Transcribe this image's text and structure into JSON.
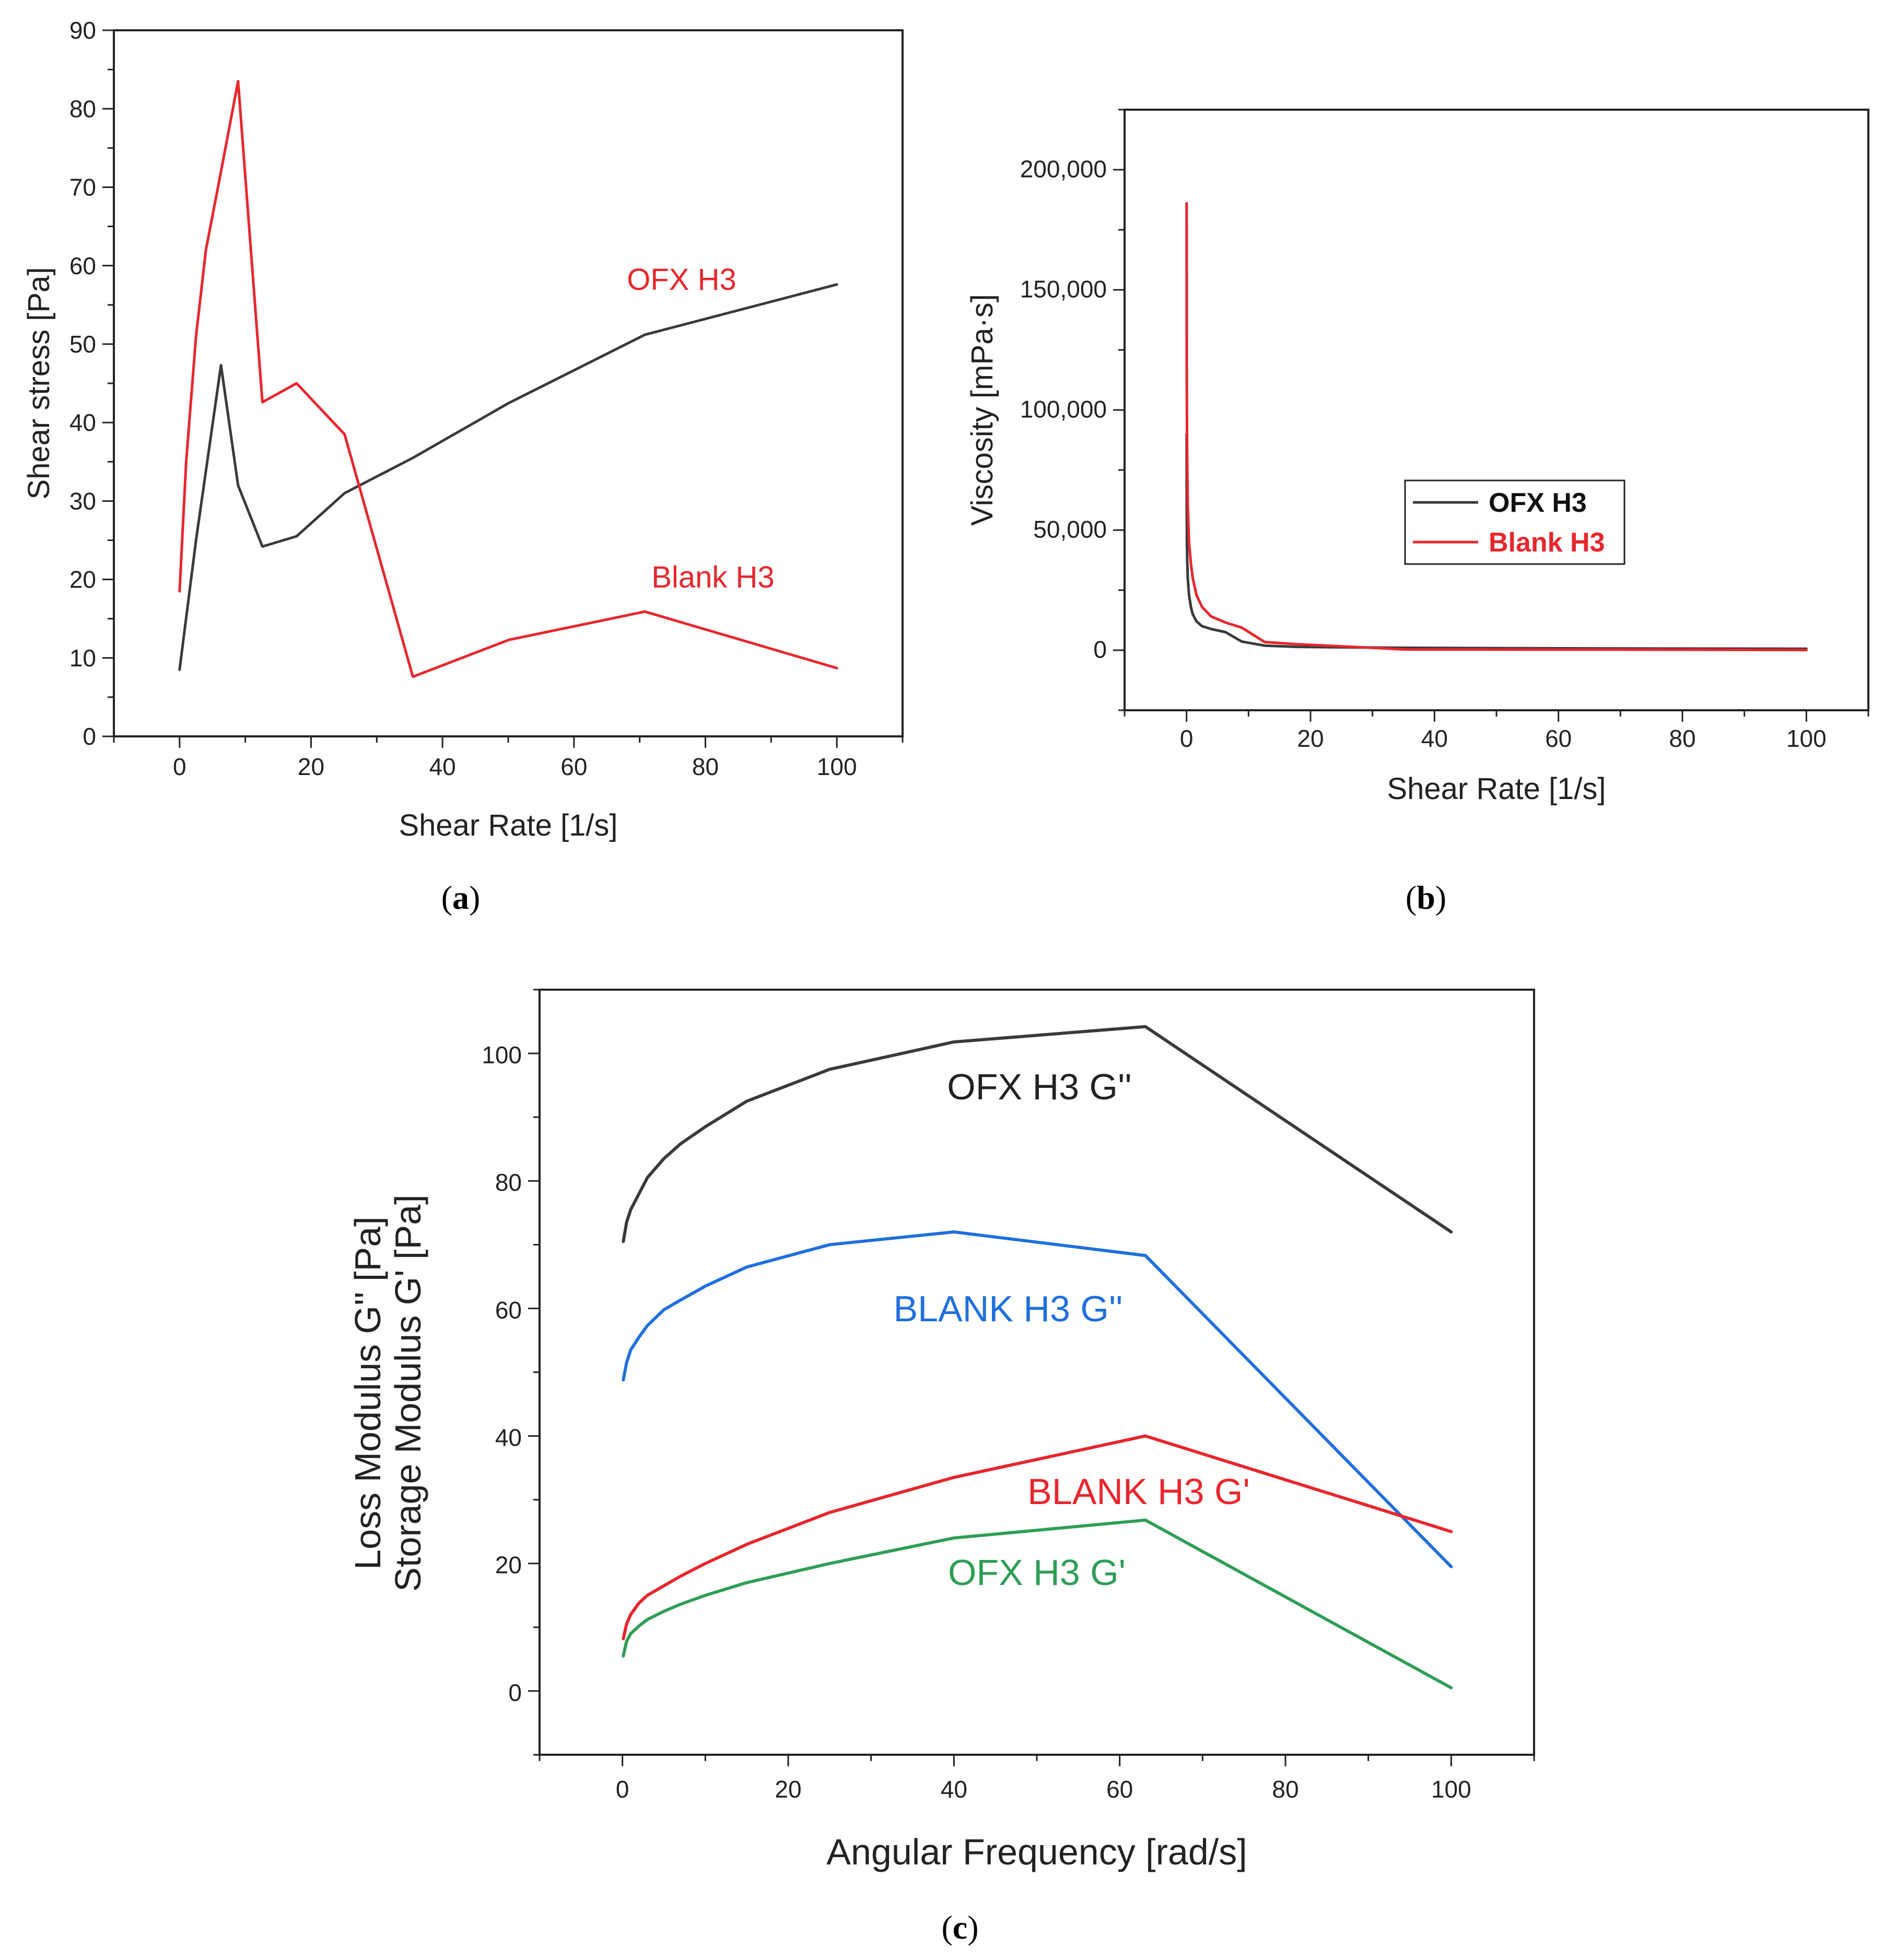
{
  "chart_data": [
    {
      "type": "line",
      "panel_label": "(a)",
      "panel_letter": "a",
      "xlabel": "Shear Rate [1/s]",
      "ylabel": "Shear stress [Pa]",
      "xlim": [
        -10,
        110
      ],
      "ylim": [
        0,
        90
      ],
      "xticks": [
        0,
        20,
        40,
        60,
        80,
        100
      ],
      "yticks": [
        0,
        10,
        20,
        30,
        40,
        50,
        60,
        70,
        80,
        90
      ],
      "series": [
        {
          "name": "OFX H3",
          "color": "#3a3a3a",
          "x": [
            0,
            2.5,
            6.3,
            8.9,
            12.6,
            17.8,
            25.1,
            35.5,
            50.1,
            70.8,
            100
          ],
          "y": [
            8.5,
            25,
            47.3,
            32,
            24.2,
            25.5,
            31,
            35.5,
            42.5,
            51.2,
            57.6
          ]
        },
        {
          "name": "Blank H3",
          "color": "#e8262c",
          "x": [
            0,
            1,
            2.5,
            4,
            6.3,
            8.9,
            12.6,
            17.8,
            25.1,
            35.5,
            50.1,
            70.8,
            100
          ],
          "y": [
            18.5,
            35,
            51,
            62,
            72,
            83.5,
            42.6,
            45,
            38.5,
            7.6,
            12.3,
            15.9,
            8.7
          ]
        }
      ],
      "annotations": [
        {
          "text": "OFX H3",
          "color": "#e8262c"
        },
        {
          "text": "Blank H3",
          "color": "#e8262c"
        }
      ]
    },
    {
      "type": "line",
      "panel_label": "(b)",
      "panel_letter": "b",
      "xlabel": "Shear Rate [1/s]",
      "ylabel": "Viscosity [mPa·s]",
      "xlim": [
        -10,
        110
      ],
      "ylim": [
        -25000,
        225000
      ],
      "xticks": [
        0,
        20,
        40,
        60,
        80,
        100
      ],
      "yticks": [
        0,
        50000,
        100000,
        150000,
        200000
      ],
      "ytick_labels": [
        "0",
        "50,000",
        "100,000",
        "150,000",
        "200,000"
      ],
      "legend": [
        "OFX H3",
        "Blank H3"
      ],
      "legend_position": "center",
      "series": [
        {
          "name": "OFX H3",
          "color": "#3a3a3a",
          "x": [
            0.01,
            0.03,
            0.06,
            0.1,
            0.2,
            0.4,
            0.7,
            1,
            1.6,
            2.5,
            4,
            6.3,
            8.9,
            12.6,
            17.8,
            25.1,
            35.5,
            50,
            70,
            100
          ],
          "y": [
            90000,
            60000,
            45000,
            38000,
            30000,
            23000,
            18000,
            15000,
            12000,
            10000,
            8800,
            7500,
            3600,
            1900,
            1400,
            1200,
            1000,
            840,
            720,
            580
          ]
        },
        {
          "name": "Blank H3",
          "color": "#e8262c",
          "x": [
            0.01,
            0.03,
            0.06,
            0.1,
            0.2,
            0.4,
            0.7,
            1,
            1.6,
            2.5,
            4,
            6.3,
            8.9,
            12.6,
            17.8,
            25.1,
            35.5,
            50,
            70,
            100
          ],
          "y": [
            186000,
            120000,
            95000,
            80000,
            60000,
            45000,
            36000,
            30000,
            23000,
            18000,
            14000,
            11500,
            9400,
            3400,
            2500,
            1600,
            250,
            250,
            230,
            90
          ]
        }
      ]
    },
    {
      "type": "line",
      "panel_label": "(c)",
      "panel_letter": "c",
      "xlabel": "Angular Frequency [rad/s]",
      "ylabel_lines": [
        "Loss Modulus G'' [Pa]",
        "Storage Modulus G' [Pa]"
      ],
      "xlim": [
        -10,
        110
      ],
      "ylim": [
        -10,
        110
      ],
      "xticks": [
        0,
        20,
        40,
        60,
        80,
        100
      ],
      "yticks": [
        0,
        20,
        40,
        60,
        80,
        100
      ],
      "series": [
        {
          "name": "OFX H3 G''",
          "color": "#3a3a3a",
          "x": [
            0.1,
            0.5,
            1,
            2,
            3,
            5,
            7,
            10,
            15,
            25,
            40,
            63.1,
            100
          ],
          "y": [
            70.5,
            73.5,
            75.5,
            78,
            80.5,
            83.5,
            85.8,
            88.5,
            92.5,
            97.5,
            101.8,
            104.2,
            72
          ]
        },
        {
          "name": "BLANK H3 G''",
          "color": "#1f6fde",
          "x": [
            0.1,
            0.5,
            1,
            2,
            3,
            5,
            7,
            10,
            15,
            25,
            40,
            63.1,
            100
          ],
          "y": [
            48.8,
            51.5,
            53.5,
            55.5,
            57.3,
            59.8,
            61.3,
            63.5,
            66.5,
            70,
            72,
            68.3,
            19.5
          ]
        },
        {
          "name": "BLANK H3 G'",
          "color": "#e8262c",
          "x": [
            0.1,
            0.5,
            1,
            2,
            3,
            5,
            7,
            10,
            15,
            25,
            40,
            63.1,
            100
          ],
          "y": [
            8.2,
            10.5,
            12,
            13.8,
            15,
            16.5,
            18,
            20,
            23,
            28,
            33.5,
            40,
            25
          ]
        },
        {
          "name": "OFX H3 G'",
          "color": "#2e9e55",
          "x": [
            0.1,
            0.5,
            1,
            2,
            3,
            5,
            7,
            10,
            15,
            25,
            40,
            63.1,
            100
          ],
          "y": [
            5.5,
            7.8,
            9,
            10.2,
            11.2,
            12.5,
            13.6,
            15,
            17,
            20,
            24,
            26.8,
            0.5
          ]
        }
      ]
    }
  ]
}
